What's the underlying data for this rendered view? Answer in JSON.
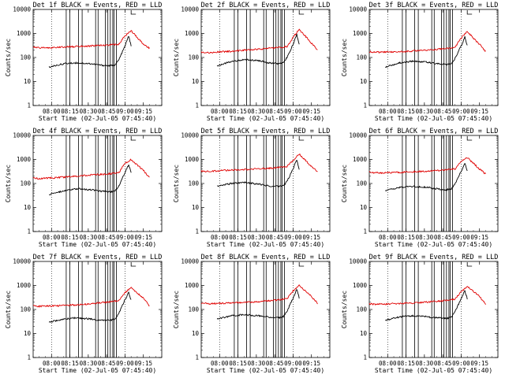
{
  "chart_data": [
    {
      "type": "line",
      "title": "Det 1f BLACK = Events, RED = LLD",
      "xlabel": "Start Time (02-Jul-05 07:45:40)",
      "ylabel": "Counts/sec",
      "yscale": "log",
      "ylim": [
        1,
        10000
      ],
      "x_ticks": [
        "08:00",
        "08:15",
        "08:30",
        "08:45",
        "09:00",
        "09:15"
      ],
      "y_ticks": [
        "1",
        "10",
        "100",
        "1000",
        "10000"
      ],
      "grid": false,
      "series": [
        {
          "color": "#000000",
          "x": [
            "07:58",
            "08:10",
            "08:20",
            "08:32",
            "08:40",
            "08:48",
            "08:52",
            "08:55",
            "09:00",
            "09:03",
            "09:05"
          ],
          "y": [
            40,
            55,
            60,
            55,
            48,
            45,
            50,
            80,
            300,
            800,
            300
          ]
        },
        {
          "color": "#e00000",
          "x": [
            "07:45",
            "07:50",
            "08:00",
            "08:15",
            "08:30",
            "08:45",
            "08:55",
            "09:00",
            "09:05",
            "09:15",
            "09:20"
          ],
          "y": [
            280,
            260,
            260,
            280,
            300,
            330,
            350,
            800,
            1300,
            350,
            240
          ]
        }
      ]
    },
    {
      "type": "line",
      "title": "Det 2f BLACK = Events, RED = LLD",
      "xlabel": "Start Time (02-Jul-05 07:45:40)",
      "ylabel": "Counts/sec",
      "yscale": "log",
      "ylim": [
        1,
        10000
      ],
      "x_ticks": [
        "08:00",
        "08:15",
        "08:30",
        "08:45",
        "09:00",
        "09:15"
      ],
      "y_ticks": [
        "1",
        "10",
        "100",
        "1000",
        "10000"
      ],
      "grid": false,
      "series": [
        {
          "color": "#000000",
          "x": [
            "07:58",
            "08:10",
            "08:20",
            "08:32",
            "08:40",
            "08:48",
            "08:52",
            "08:55",
            "09:00",
            "09:03",
            "09:05"
          ],
          "y": [
            45,
            70,
            80,
            75,
            60,
            55,
            60,
            100,
            350,
            900,
            350
          ]
        },
        {
          "color": "#e00000",
          "x": [
            "07:45",
            "07:50",
            "08:00",
            "08:15",
            "08:30",
            "08:45",
            "08:55",
            "09:00",
            "09:05",
            "09:15",
            "09:20"
          ],
          "y": [
            170,
            160,
            170,
            190,
            220,
            250,
            280,
            700,
            1500,
            400,
            200
          ]
        }
      ]
    },
    {
      "type": "line",
      "title": "Det 3f BLACK = Events, RED = LLD",
      "xlabel": "Start Time (02-Jul-05 07:45:40)",
      "ylabel": "Counts/sec",
      "yscale": "log",
      "ylim": [
        1,
        10000
      ],
      "x_ticks": [
        "08:00",
        "08:15",
        "08:30",
        "08:45",
        "09:00",
        "09:15"
      ],
      "y_ticks": [
        "1",
        "10",
        "100",
        "1000",
        "10000"
      ],
      "grid": false,
      "series": [
        {
          "color": "#000000",
          "x": [
            "07:58",
            "08:10",
            "08:20",
            "08:32",
            "08:40",
            "08:48",
            "08:52",
            "08:55",
            "09:00",
            "09:03",
            "09:05"
          ],
          "y": [
            40,
            60,
            70,
            65,
            55,
            50,
            55,
            90,
            300,
            700,
            300
          ]
        },
        {
          "color": "#e00000",
          "x": [
            "07:45",
            "07:50",
            "08:00",
            "08:15",
            "08:30",
            "08:45",
            "08:55",
            "09:00",
            "09:05",
            "09:15",
            "09:20"
          ],
          "y": [
            170,
            165,
            170,
            180,
            200,
            230,
            260,
            650,
            1200,
            350,
            180
          ]
        }
      ]
    },
    {
      "type": "line",
      "title": "Det 4f BLACK = Events, RED = LLD",
      "xlabel": "Start Time (02-Jul-05 07:45:40)",
      "ylabel": "Counts/sec",
      "yscale": "log",
      "ylim": [
        1,
        10000
      ],
      "x_ticks": [
        "08:00",
        "08:15",
        "08:30",
        "08:45",
        "09:00",
        "09:15"
      ],
      "y_ticks": [
        "1",
        "10",
        "100",
        "1000",
        "10000"
      ],
      "grid": false,
      "series": [
        {
          "color": "#000000",
          "x": [
            "07:58",
            "08:10",
            "08:20",
            "08:32",
            "08:40",
            "08:48",
            "08:52",
            "08:55",
            "09:00",
            "09:03",
            "09:05"
          ],
          "y": [
            35,
            50,
            60,
            55,
            48,
            45,
            50,
            80,
            280,
            600,
            280
          ]
        },
        {
          "color": "#e00000",
          "x": [
            "07:45",
            "07:50",
            "08:00",
            "08:15",
            "08:30",
            "08:45",
            "08:55",
            "09:00",
            "09:05",
            "09:15",
            "09:20"
          ],
          "y": [
            170,
            160,
            170,
            190,
            220,
            250,
            280,
            700,
            1000,
            350,
            180
          ]
        }
      ]
    },
    {
      "type": "line",
      "title": "Det 5f BLACK = Events, RED = LLD",
      "xlabel": "Start Time (02-Jul-05 07:45:40)",
      "ylabel": "Counts/sec",
      "yscale": "log",
      "ylim": [
        1,
        10000
      ],
      "x_ticks": [
        "08:00",
        "08:15",
        "08:30",
        "08:45",
        "09:00",
        "09:15"
      ],
      "y_ticks": [
        "1",
        "10",
        "100",
        "1000",
        "10000"
      ],
      "grid": false,
      "series": [
        {
          "color": "#000000",
          "x": [
            "07:58",
            "08:10",
            "08:20",
            "08:32",
            "08:40",
            "08:48",
            "08:52",
            "08:55",
            "09:00",
            "09:03",
            "09:05"
          ],
          "y": [
            80,
            100,
            110,
            95,
            80,
            75,
            80,
            120,
            400,
            1000,
            400
          ]
        },
        {
          "color": "#e00000",
          "x": [
            "07:45",
            "07:50",
            "08:00",
            "08:15",
            "08:30",
            "08:45",
            "08:55",
            "09:00",
            "09:05",
            "09:15",
            "09:20"
          ],
          "y": [
            330,
            320,
            340,
            370,
            400,
            450,
            500,
            900,
            1700,
            500,
            300
          ]
        }
      ]
    },
    {
      "type": "line",
      "title": "Det 6f BLACK = Events, RED = LLD",
      "xlabel": "Start Time (02-Jul-05 07:45:40)",
      "ylabel": "Counts/sec",
      "yscale": "log",
      "ylim": [
        1,
        10000
      ],
      "x_ticks": [
        "08:00",
        "08:15",
        "08:30",
        "08:45",
        "09:00",
        "09:15"
      ],
      "y_ticks": [
        "1",
        "10",
        "100",
        "1000",
        "10000"
      ],
      "grid": false,
      "series": [
        {
          "color": "#000000",
          "x": [
            "07:58",
            "08:10",
            "08:20",
            "08:32",
            "08:40",
            "08:48",
            "08:52",
            "08:55",
            "09:00",
            "09:03",
            "09:05"
          ],
          "y": [
            50,
            70,
            75,
            70,
            60,
            55,
            60,
            95,
            320,
            700,
            320
          ]
        },
        {
          "color": "#e00000",
          "x": [
            "07:45",
            "07:50",
            "08:00",
            "08:15",
            "08:30",
            "08:45",
            "08:55",
            "09:00",
            "09:05",
            "09:15",
            "09:20"
          ],
          "y": [
            300,
            280,
            280,
            300,
            320,
            360,
            400,
            800,
            1200,
            400,
            250
          ]
        }
      ]
    },
    {
      "type": "line",
      "title": "Det 7f BLACK = Events, RED = LLD",
      "xlabel": "Start Time (02-Jul-05 07:45:40)",
      "ylabel": "Counts/sec",
      "yscale": "log",
      "ylim": [
        1,
        10000
      ],
      "x_ticks": [
        "08:00",
        "08:15",
        "08:30",
        "08:45",
        "09:00",
        "09:15"
      ],
      "y_ticks": [
        "1",
        "10",
        "100",
        "1000",
        "10000"
      ],
      "grid": false,
      "series": [
        {
          "color": "#000000",
          "x": [
            "07:58",
            "08:10",
            "08:20",
            "08:32",
            "08:40",
            "08:48",
            "08:52",
            "08:55",
            "09:00",
            "09:03",
            "09:05"
          ],
          "y": [
            30,
            40,
            45,
            40,
            35,
            35,
            40,
            70,
            250,
            500,
            250
          ]
        },
        {
          "color": "#e00000",
          "x": [
            "07:45",
            "07:50",
            "08:00",
            "08:15",
            "08:30",
            "08:45",
            "08:55",
            "09:00",
            "09:05",
            "09:15",
            "09:20"
          ],
          "y": [
            140,
            135,
            140,
            150,
            170,
            200,
            240,
            500,
            800,
            300,
            140
          ]
        }
      ]
    },
    {
      "type": "line",
      "title": "Det 8f BLACK = Events, RED = LLD",
      "xlabel": "Start Time (02-Jul-05 07:45:40)",
      "ylabel": "Counts/sec",
      "yscale": "log",
      "ylim": [
        1,
        10000
      ],
      "x_ticks": [
        "08:00",
        "08:15",
        "08:30",
        "08:45",
        "09:00",
        "09:15"
      ],
      "y_ticks": [
        "1",
        "10",
        "100",
        "1000",
        "10000"
      ],
      "grid": false,
      "series": [
        {
          "color": "#000000",
          "x": [
            "07:58",
            "08:10",
            "08:20",
            "08:32",
            "08:40",
            "08:48",
            "08:52",
            "08:55",
            "09:00",
            "09:03",
            "09:05"
          ],
          "y": [
            40,
            55,
            60,
            55,
            48,
            45,
            50,
            85,
            300,
            700,
            300
          ]
        },
        {
          "color": "#e00000",
          "x": [
            "07:45",
            "07:50",
            "08:00",
            "08:15",
            "08:30",
            "08:45",
            "08:55",
            "09:00",
            "09:05",
            "09:15",
            "09:20"
          ],
          "y": [
            180,
            175,
            180,
            190,
            210,
            240,
            280,
            600,
            1000,
            350,
            180
          ]
        }
      ]
    },
    {
      "type": "line",
      "title": "Det 9f BLACK = Events, RED = LLD",
      "xlabel": "Start Time (02-Jul-05 07:45:40)",
      "ylabel": "Counts/sec",
      "yscale": "log",
      "ylim": [
        1,
        10000
      ],
      "x_ticks": [
        "08:00",
        "08:15",
        "08:30",
        "08:45",
        "09:00",
        "09:15"
      ],
      "y_ticks": [
        "1",
        "10",
        "100",
        "1000",
        "10000"
      ],
      "grid": false,
      "series": [
        {
          "color": "#000000",
          "x": [
            "07:58",
            "08:10",
            "08:20",
            "08:32",
            "08:40",
            "08:48",
            "08:52",
            "08:55",
            "09:00",
            "09:03",
            "09:05"
          ],
          "y": [
            35,
            50,
            55,
            50,
            45,
            42,
            48,
            80,
            280,
            600,
            280
          ]
        },
        {
          "color": "#e00000",
          "x": [
            "07:45",
            "07:50",
            "08:00",
            "08:15",
            "08:30",
            "08:45",
            "08:55",
            "09:00",
            "09:05",
            "09:15",
            "09:20"
          ],
          "y": [
            170,
            165,
            170,
            180,
            200,
            230,
            270,
            550,
            900,
            350,
            170
          ]
        }
      ]
    }
  ],
  "shared": {
    "x_start": "07:45",
    "x_end": "09:30",
    "dotted_times": [
      "08:00",
      "09:00"
    ],
    "event_lines": [
      "08:12",
      "08:15",
      "08:22",
      "08:25",
      "08:36",
      "08:38",
      "08:44",
      "08:46",
      "08:48",
      "08:50",
      "08:51",
      "08:53"
    ]
  }
}
